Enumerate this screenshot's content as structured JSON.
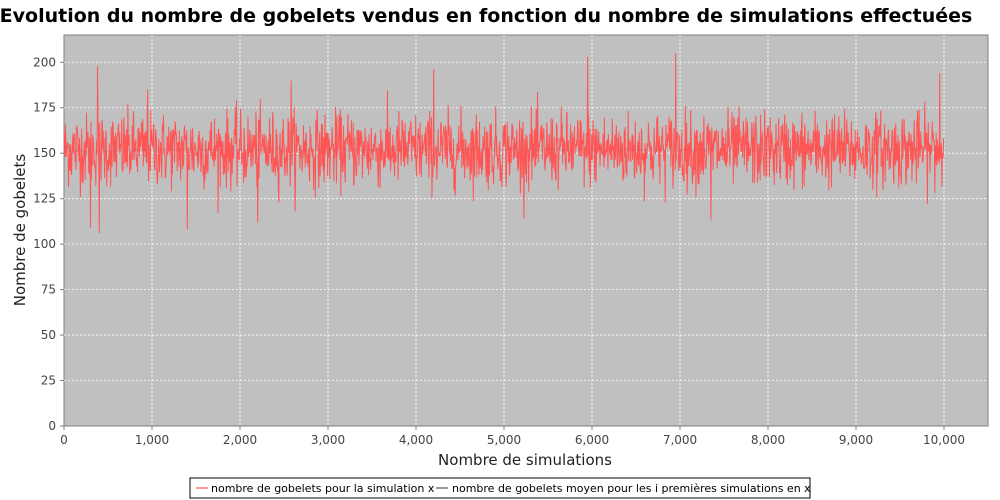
{
  "chart_data": {
    "type": "line",
    "title": "Evolution du nombre de gobelets vendus en fonction du nombre de simulations effectuées",
    "xlabel": "Nombre de simulations",
    "ylabel": "Nombre de gobelets",
    "xlim": [
      0,
      10500
    ],
    "ylim": [
      0,
      215
    ],
    "x_ticks": [
      0,
      1000,
      2000,
      3000,
      4000,
      5000,
      6000,
      7000,
      8000,
      9000,
      10000
    ],
    "x_tick_labels": [
      "0",
      "1,000",
      "2,000",
      "3,000",
      "4,000",
      "5,000",
      "6,000",
      "7,000",
      "8,000",
      "9,000",
      "10,000"
    ],
    "y_ticks": [
      0,
      25,
      50,
      75,
      100,
      125,
      150,
      175,
      200
    ],
    "y_tick_labels": [
      "0",
      "25",
      "50",
      "75",
      "100",
      "125",
      "150",
      "175",
      "200"
    ],
    "grid": true,
    "legend_position": "bottom",
    "plot_background": "#c0c0c0",
    "series": [
      {
        "name": "nombre de gobelets pour la simulation x",
        "color": "#ff5555",
        "n_points": 10000,
        "mean": 152,
        "std": 10,
        "min": 106,
        "max": 205,
        "notable_peaks": [
          [
            380,
            198
          ],
          [
            950,
            185
          ],
          [
            2580,
            190
          ],
          [
            4200,
            196
          ],
          [
            5950,
            203
          ],
          [
            6950,
            205
          ],
          [
            9950,
            194
          ]
        ],
        "notable_troughs": [
          [
            300,
            109
          ],
          [
            400,
            106
          ],
          [
            1400,
            108
          ],
          [
            2200,
            112
          ],
          [
            7350,
            113
          ]
        ]
      },
      {
        "name": "nombre de gobelets moyen pour les i premières simulations en x",
        "color": "#555555",
        "values_summary": "converges to about 152"
      }
    ]
  }
}
